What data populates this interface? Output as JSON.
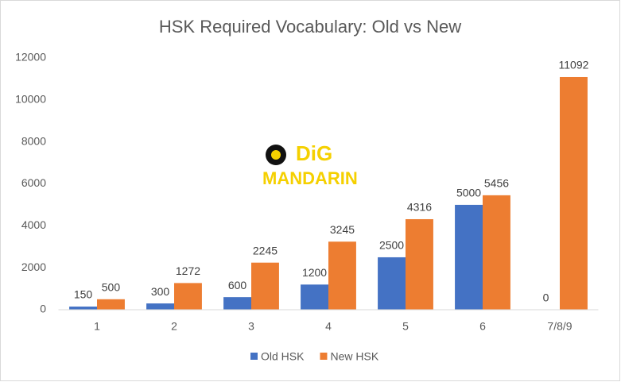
{
  "chart_data": {
    "type": "bar",
    "title": "HSK Required Vocabulary: Old vs New",
    "categories": [
      "1",
      "2",
      "3",
      "4",
      "5",
      "6",
      "7/8/9"
    ],
    "series": [
      {
        "name": "Old HSK",
        "color": "#4472c4",
        "values": [
          150,
          300,
          600,
          1200,
          2500,
          5000,
          0
        ]
      },
      {
        "name": "New HSK",
        "color": "#ed7d31",
        "values": [
          500,
          1272,
          2245,
          3245,
          4316,
          5456,
          11092
        ]
      }
    ],
    "ylim": [
      0,
      12000
    ],
    "yticks": [
      0,
      2000,
      4000,
      6000,
      8000,
      10000,
      12000
    ],
    "grid": false,
    "legend": "bottom",
    "watermark": [
      "DiG",
      "MANDARIN"
    ]
  }
}
